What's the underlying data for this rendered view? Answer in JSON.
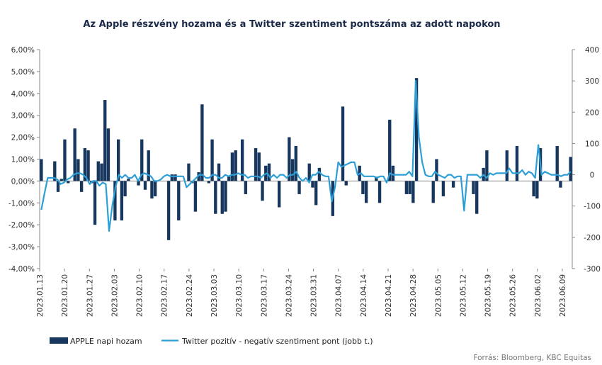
{
  "chart_data": {
    "type": "bar+line",
    "title": "Az Apple részvény hozama és a Twitter szentiment pontszáma az adott napokon",
    "source": "Forrás: Bloomberg, KBC Equitas",
    "left_axis": {
      "min": -4,
      "max": 6,
      "step": 1,
      "tick_labels": [
        "6,00%",
        "5,00%",
        "4,00%",
        "3,00%",
        "2,00%",
        "1,00%",
        "0,00%",
        "-1,00%",
        "-2,00%",
        "-3,00%",
        "-4,00%"
      ]
    },
    "right_axis": {
      "min": -300,
      "max": 400,
      "step": 100,
      "tick_labels": [
        "400",
        "300",
        "200",
        "100",
        "0",
        "-100",
        "-200",
        "-300"
      ]
    },
    "x_tick_labels": [
      "2023.01.13",
      "2023.01.20",
      "2023.01.27",
      "2023.02.03",
      "2023.02.10",
      "2023.02.17",
      "2023.02.24",
      "2023.03.03",
      "2023.03.10",
      "2023.03.17",
      "2023.03.24",
      "2023.03.31",
      "2023.04.07",
      "2023.04.14",
      "2023.04.21",
      "2023.04.28",
      "2023.05.05",
      "2023.05.12",
      "2023.05.19",
      "2023.05.26",
      "2023.06.02",
      "2023.06.09"
    ],
    "series": [
      {
        "name": "APPLE napi hozam",
        "kind": "bar",
        "axis": "left",
        "color": "#17375e",
        "values": [
          1.0,
          0.0,
          0.0,
          0.0,
          0.9,
          -0.5,
          0.1,
          1.9,
          -0.1,
          0.0,
          2.4,
          1.0,
          -0.5,
          1.5,
          1.4,
          -0.1,
          -2.0,
          0.9,
          0.8,
          3.7,
          2.4,
          0.0,
          -1.8,
          1.9,
          -1.8,
          -0.7,
          0.1,
          0.0,
          0.0,
          -0.2,
          1.9,
          -0.4,
          1.4,
          -0.8,
          -0.7,
          0.0,
          0.0,
          0.0,
          -2.7,
          0.3,
          0.3,
          -1.8,
          0.0,
          0.0,
          0.8,
          -0.1,
          -1.4,
          0.4,
          3.5,
          0.0,
          -0.1,
          1.9,
          -1.5,
          0.8,
          -1.5,
          -1.4,
          0.2,
          1.3,
          1.4,
          0.0,
          1.9,
          -0.6,
          0.0,
          0.0,
          1.5,
          1.3,
          -0.9,
          0.7,
          0.8,
          0.0,
          0.0,
          -1.2,
          0.0,
          0.0,
          2.0,
          1.0,
          1.6,
          -0.6,
          0.0,
          0.0,
          0.8,
          -0.3,
          -1.1,
          0.6,
          0.0,
          0.0,
          0.0,
          -1.6,
          0.0,
          0.0,
          3.4,
          -0.2,
          0.0,
          0.0,
          0.0,
          0.7,
          -0.6,
          -1.0,
          0.0,
          0.0,
          0.2,
          -1.0,
          0.0,
          0.0,
          2.8,
          0.7,
          0.0,
          0.0,
          0.0,
          -0.6,
          -0.6,
          -1.0,
          4.7,
          0.0,
          0.0,
          0.0,
          0.0,
          -1.0,
          1.0,
          0.0,
          -0.7,
          0.0,
          0.0,
          -0.3,
          0.0,
          0.0,
          0.0,
          0.0,
          0.0,
          -0.6,
          -1.5,
          0.0,
          0.6,
          1.4,
          0.0,
          0.0,
          0.0,
          0.0,
          0.0,
          1.4,
          0.0,
          0.0,
          1.6,
          0.0,
          0.0,
          0.0,
          0.0,
          -0.7,
          -0.8,
          1.5,
          0.0,
          0.0,
          0.0,
          0.0,
          1.6,
          -0.3,
          0.0,
          0.0,
          1.1
        ]
      },
      {
        "name": "Twitter pozitív - negatív szentiment pont (jobb t.)",
        "kind": "line",
        "axis": "right",
        "color": "#2e9fd6",
        "values": [
          -112,
          -60,
          -10,
          -10,
          -10,
          -15,
          -30,
          -25,
          -15,
          -10,
          0,
          5,
          5,
          0,
          -10,
          -30,
          -20,
          -20,
          -35,
          -25,
          -30,
          -180,
          -100,
          -40,
          0,
          -10,
          0,
          -10,
          -10,
          0,
          -20,
          0,
          5,
          0,
          -5,
          -20,
          -20,
          -15,
          -5,
          0,
          -5,
          -5,
          -5,
          -5,
          -5,
          -40,
          -30,
          -20,
          -10,
          0,
          0,
          -10,
          -10,
          0,
          0,
          -10,
          -10,
          0,
          -5,
          0,
          0,
          5,
          0,
          0,
          -10,
          -5,
          -5,
          -5,
          -10,
          0,
          5,
          -10,
          0,
          -10,
          0,
          0,
          -10,
          0,
          0,
          10,
          -10,
          -20,
          -10,
          -25,
          0,
          0,
          10,
          0,
          -5,
          -5,
          -85,
          -40,
          40,
          25,
          30,
          35,
          40,
          40,
          0,
          5,
          -5,
          -5,
          -5,
          -5,
          -10,
          -5,
          -5,
          -25,
          5,
          0,
          0,
          0,
          0,
          0,
          10,
          -5,
          300,
          120,
          40,
          0,
          -5,
          -5,
          10,
          0,
          -5,
          -10,
          0,
          0,
          -10,
          -5,
          -5,
          -115,
          0,
          0,
          0,
          0,
          -10,
          0,
          -10,
          5,
          0,
          5,
          5,
          5,
          5,
          20,
          5,
          5,
          5,
          15,
          0,
          10,
          5,
          -10,
          95,
          0,
          10,
          5,
          0,
          0,
          0,
          -5,
          0,
          0,
          10
        ]
      }
    ]
  }
}
